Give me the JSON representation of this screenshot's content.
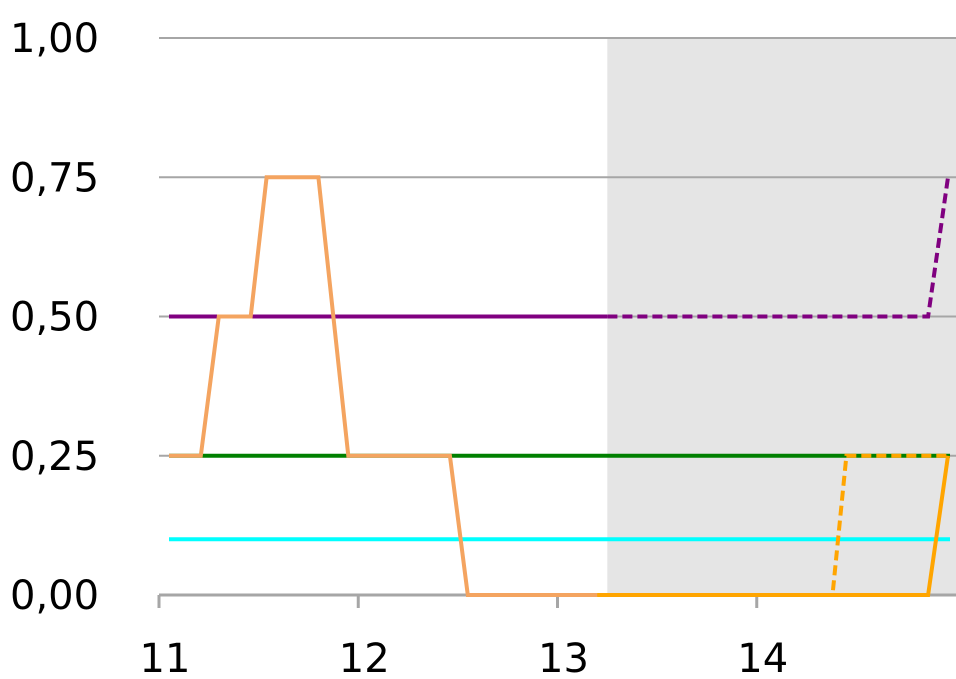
{
  "chart_data": {
    "type": "line",
    "title": "",
    "xlabel": "",
    "ylabel": "",
    "xlim": [
      11.0,
      15.0
    ],
    "ylim": [
      0,
      1
    ],
    "x_ticks": [
      11,
      12,
      13,
      14
    ],
    "x_tick_labels": [
      "11",
      "12",
      "13",
      "14"
    ],
    "y_ticks": [
      0,
      0.25,
      0.5,
      0.75,
      1.0
    ],
    "y_tick_labels": [
      "0,00",
      "0,25",
      "0,50",
      "0,75",
      "1,00"
    ],
    "grid": "horizontal",
    "legend": "none",
    "shaded_region": {
      "x_start": 13.25,
      "x_end": 15.0,
      "color": "#e5e5e5"
    },
    "series": [
      {
        "color": "#800080",
        "style": "solid",
        "x": [
          11.05,
          13.25
        ],
        "y": [
          0.5,
          0.5
        ]
      },
      {
        "color": "#800080",
        "style": "dashed",
        "x": [
          13.1,
          14.86,
          14.96
        ],
        "y": [
          0.5,
          0.5,
          0.75
        ]
      },
      {
        "color": "#008000",
        "style": "solid",
        "x": [
          11.05,
          14.97
        ],
        "y": [
          0.25,
          0.25
        ]
      },
      {
        "color": "#00ffff",
        "style": "solid",
        "x": [
          11.05,
          14.97
        ],
        "y": [
          0.1,
          0.1
        ]
      },
      {
        "color": "#f4a460",
        "style": "solid",
        "x": [
          11.05,
          11.21,
          11.3,
          11.46,
          11.54,
          11.8,
          11.95,
          12.46,
          12.55,
          13.2
        ],
        "y": [
          0.25,
          0.25,
          0.5,
          0.5,
          0.75,
          0.75,
          0.25,
          0.25,
          0.0,
          0.0
        ]
      },
      {
        "color": "#ffa500",
        "style": "solid",
        "x": [
          13.2,
          14.86,
          14.96
        ],
        "y": [
          0.0,
          0.0,
          0.25
        ]
      },
      {
        "color": "#ffa500",
        "style": "dashed",
        "x": [
          13.2,
          14.38,
          14.45,
          14.97
        ],
        "y": [
          0.0,
          0.0,
          0.25,
          0.25
        ]
      }
    ]
  }
}
